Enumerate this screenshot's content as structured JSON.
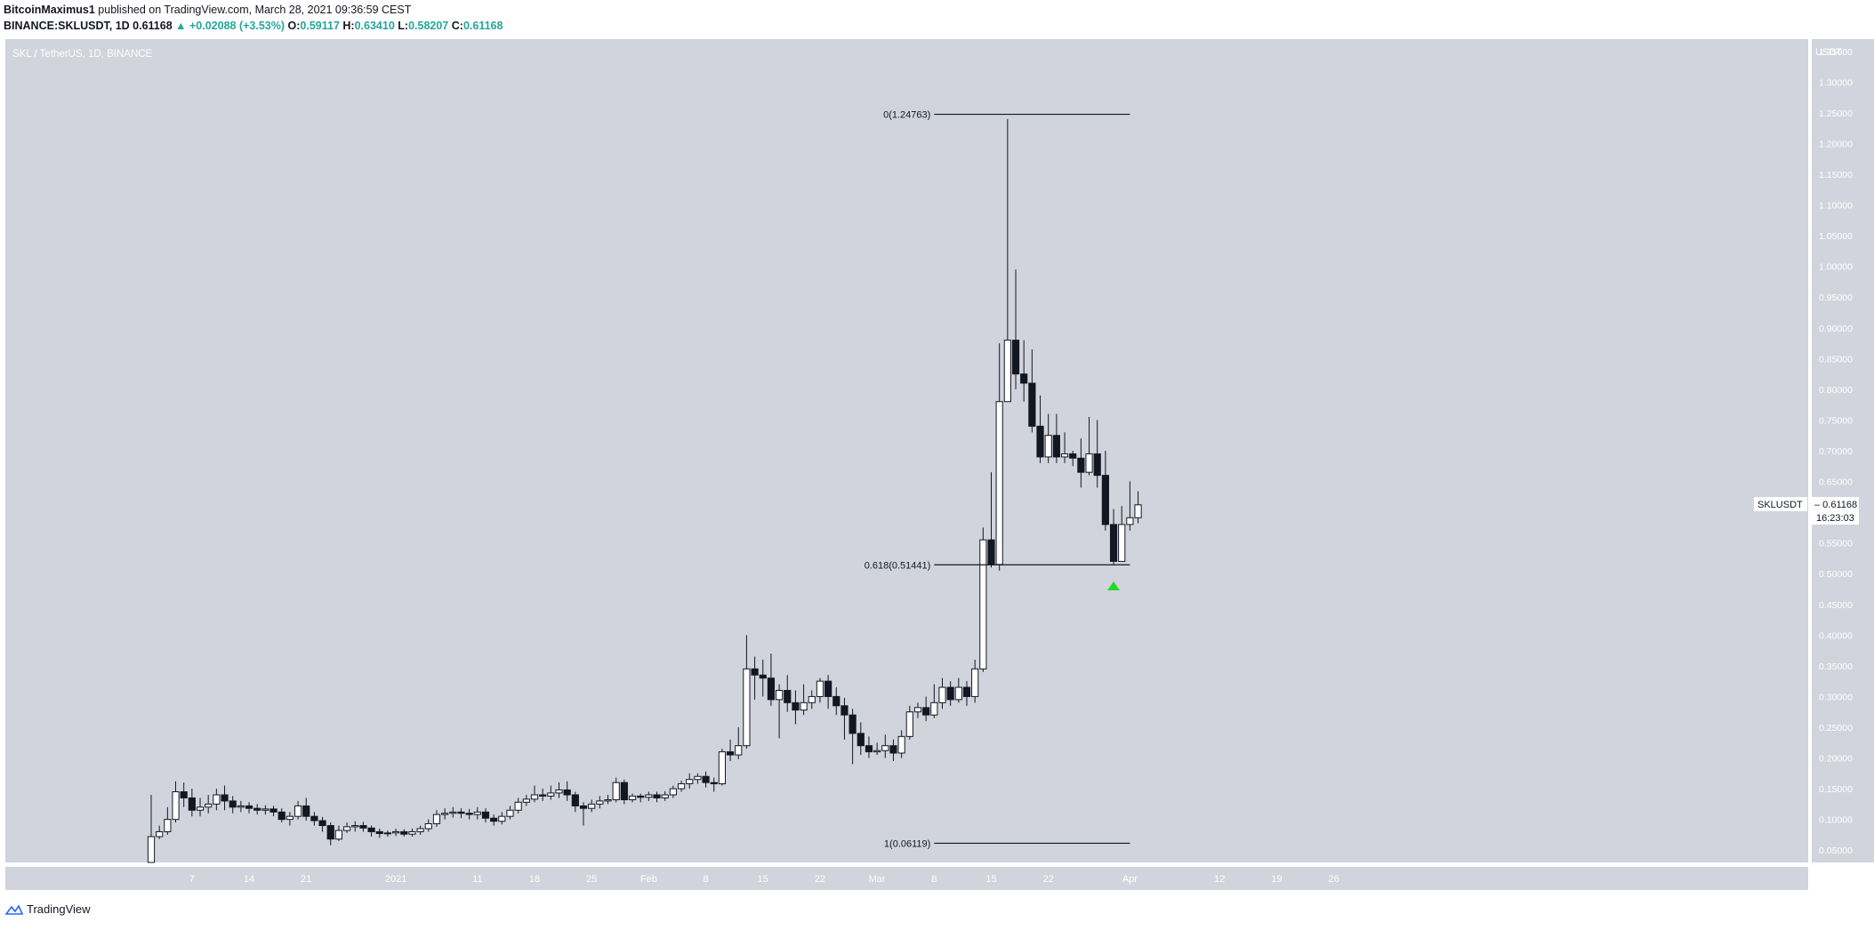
{
  "header": {
    "author": "BitcoinMaximus1",
    "published_text": "published on TradingView.com, March 28, 2021 09:36:59 CEST",
    "symbol_line": "BINANCE:SKLUSDT, 1D",
    "last": "0.61168",
    "change": "▲ +0.02088 (+3.53%)",
    "o_label": "O:",
    "o": "0.59117",
    "h_label": "H:",
    "h": "0.63410",
    "l_label": "L:",
    "l": "0.58207",
    "c_label": "C:",
    "c": "0.61168"
  },
  "footer": {
    "brand": "TradingView"
  },
  "chart_data": {
    "type": "candlestick",
    "pane_title": "SKL / TetherUS, 1D, BINANCE",
    "y_axis_unit": "USDT",
    "ylim": [
      0.03,
      1.37
    ],
    "y_ticks": [
      "0.05000",
      "0.10000",
      "0.15000",
      "0.20000",
      "0.25000",
      "0.30000",
      "0.35000",
      "0.40000",
      "0.45000",
      "0.50000",
      "0.55000",
      "0.60000",
      "0.65000",
      "0.70000",
      "0.75000",
      "0.80000",
      "0.85000",
      "0.90000",
      "0.95000",
      "1.00000",
      "1.05000",
      "1.10000",
      "1.15000",
      "1.20000",
      "1.25000",
      "1.30000",
      "1.35000"
    ],
    "x_ticks": [
      {
        "label": "7",
        "day": 5
      },
      {
        "label": "14",
        "day": 12
      },
      {
        "label": "21",
        "day": 19
      },
      {
        "label": "2021",
        "day": 30
      },
      {
        "label": "11",
        "day": 40
      },
      {
        "label": "18",
        "day": 47
      },
      {
        "label": "25",
        "day": 54
      },
      {
        "label": "Feb",
        "day": 61
      },
      {
        "label": "8",
        "day": 68
      },
      {
        "label": "15",
        "day": 75
      },
      {
        "label": "22",
        "day": 82
      },
      {
        "label": "Mar",
        "day": 89
      },
      {
        "label": "8",
        "day": 96
      },
      {
        "label": "15",
        "day": 103
      },
      {
        "label": "22",
        "day": 110
      },
      {
        "label": "Apr",
        "day": 120
      },
      {
        "label": "12",
        "day": 131
      },
      {
        "label": "19",
        "day": 138
      },
      {
        "label": "26",
        "day": 145
      }
    ],
    "candles": [
      [
        0.03,
        0.072,
        0.03,
        0.14
      ],
      [
        0.072,
        0.08,
        0.068,
        0.09
      ],
      [
        0.08,
        0.1,
        0.075,
        0.12
      ],
      [
        0.1,
        0.145,
        0.095,
        0.162
      ],
      [
        0.145,
        0.135,
        0.12,
        0.16
      ],
      [
        0.135,
        0.115,
        0.105,
        0.15
      ],
      [
        0.115,
        0.12,
        0.105,
        0.135
      ],
      [
        0.12,
        0.125,
        0.11,
        0.14
      ],
      [
        0.125,
        0.14,
        0.115,
        0.15
      ],
      [
        0.14,
        0.13,
        0.115,
        0.155
      ],
      [
        0.13,
        0.12,
        0.11,
        0.138
      ],
      [
        0.12,
        0.122,
        0.112,
        0.13
      ],
      [
        0.122,
        0.118,
        0.11,
        0.128
      ],
      [
        0.118,
        0.115,
        0.108,
        0.125
      ],
      [
        0.115,
        0.117,
        0.108,
        0.123
      ],
      [
        0.117,
        0.112,
        0.105,
        0.122
      ],
      [
        0.112,
        0.1,
        0.095,
        0.118
      ],
      [
        0.1,
        0.105,
        0.09,
        0.112
      ],
      [
        0.105,
        0.122,
        0.1,
        0.13
      ],
      [
        0.122,
        0.105,
        0.098,
        0.135
      ],
      [
        0.105,
        0.098,
        0.09,
        0.112
      ],
      [
        0.098,
        0.09,
        0.08,
        0.104
      ],
      [
        0.09,
        0.068,
        0.058,
        0.095
      ],
      [
        0.068,
        0.082,
        0.065,
        0.09
      ],
      [
        0.082,
        0.088,
        0.078,
        0.095
      ],
      [
        0.088,
        0.09,
        0.08,
        0.097
      ],
      [
        0.09,
        0.086,
        0.08,
        0.096
      ],
      [
        0.086,
        0.08,
        0.072,
        0.09
      ],
      [
        0.08,
        0.077,
        0.07,
        0.085
      ],
      [
        0.077,
        0.078,
        0.072,
        0.082
      ],
      [
        0.078,
        0.08,
        0.073,
        0.085
      ],
      [
        0.08,
        0.076,
        0.072,
        0.084
      ],
      [
        0.076,
        0.08,
        0.072,
        0.085
      ],
      [
        0.08,
        0.085,
        0.075,
        0.09
      ],
      [
        0.085,
        0.093,
        0.08,
        0.1
      ],
      [
        0.093,
        0.108,
        0.088,
        0.115
      ],
      [
        0.108,
        0.11,
        0.1,
        0.118
      ],
      [
        0.11,
        0.112,
        0.103,
        0.12
      ],
      [
        0.112,
        0.11,
        0.102,
        0.118
      ],
      [
        0.11,
        0.108,
        0.1,
        0.117
      ],
      [
        0.108,
        0.112,
        0.1,
        0.12
      ],
      [
        0.112,
        0.102,
        0.095,
        0.118
      ],
      [
        0.102,
        0.097,
        0.09,
        0.108
      ],
      [
        0.097,
        0.105,
        0.092,
        0.112
      ],
      [
        0.105,
        0.115,
        0.1,
        0.122
      ],
      [
        0.115,
        0.128,
        0.11,
        0.135
      ],
      [
        0.128,
        0.133,
        0.122,
        0.14
      ],
      [
        0.133,
        0.14,
        0.128,
        0.155
      ],
      [
        0.14,
        0.138,
        0.13,
        0.15
      ],
      [
        0.138,
        0.143,
        0.132,
        0.155
      ],
      [
        0.143,
        0.148,
        0.135,
        0.16
      ],
      [
        0.148,
        0.14,
        0.13,
        0.162
      ],
      [
        0.14,
        0.122,
        0.112,
        0.145
      ],
      [
        0.122,
        0.118,
        0.09,
        0.128
      ],
      [
        0.118,
        0.125,
        0.112,
        0.132
      ],
      [
        0.125,
        0.13,
        0.118,
        0.138
      ],
      [
        0.13,
        0.132,
        0.125,
        0.14
      ],
      [
        0.132,
        0.16,
        0.128,
        0.168
      ],
      [
        0.16,
        0.132,
        0.125,
        0.165
      ],
      [
        0.132,
        0.138,
        0.128,
        0.142
      ],
      [
        0.138,
        0.136,
        0.128,
        0.142
      ],
      [
        0.136,
        0.14,
        0.13,
        0.145
      ],
      [
        0.14,
        0.135,
        0.128,
        0.145
      ],
      [
        0.135,
        0.14,
        0.13,
        0.146
      ],
      [
        0.14,
        0.15,
        0.135,
        0.155
      ],
      [
        0.15,
        0.158,
        0.145,
        0.163
      ],
      [
        0.158,
        0.165,
        0.15,
        0.175
      ],
      [
        0.165,
        0.17,
        0.158,
        0.175
      ],
      [
        0.17,
        0.16,
        0.152,
        0.178
      ],
      [
        0.16,
        0.158,
        0.145,
        0.168
      ],
      [
        0.158,
        0.21,
        0.155,
        0.215
      ],
      [
        0.21,
        0.205,
        0.195,
        0.23
      ],
      [
        0.205,
        0.22,
        0.198,
        0.25
      ],
      [
        0.22,
        0.345,
        0.215,
        0.4
      ],
      [
        0.345,
        0.335,
        0.295,
        0.365
      ],
      [
        0.335,
        0.33,
        0.3,
        0.36
      ],
      [
        0.33,
        0.295,
        0.285,
        0.37
      ],
      [
        0.295,
        0.31,
        0.232,
        0.32
      ],
      [
        0.31,
        0.29,
        0.275,
        0.335
      ],
      [
        0.29,
        0.278,
        0.255,
        0.31
      ],
      [
        0.278,
        0.29,
        0.27,
        0.32
      ],
      [
        0.29,
        0.3,
        0.28,
        0.31
      ],
      [
        0.3,
        0.325,
        0.29,
        0.33
      ],
      [
        0.325,
        0.3,
        0.28,
        0.335
      ],
      [
        0.3,
        0.285,
        0.27,
        0.315
      ],
      [
        0.285,
        0.27,
        0.23,
        0.298
      ],
      [
        0.27,
        0.24,
        0.19,
        0.28
      ],
      [
        0.24,
        0.22,
        0.205,
        0.258
      ],
      [
        0.22,
        0.21,
        0.2,
        0.235
      ],
      [
        0.21,
        0.212,
        0.205,
        0.225
      ],
      [
        0.212,
        0.22,
        0.2,
        0.238
      ],
      [
        0.22,
        0.208,
        0.195,
        0.23
      ],
      [
        0.208,
        0.235,
        0.2,
        0.245
      ],
      [
        0.235,
        0.275,
        0.23,
        0.285
      ],
      [
        0.275,
        0.282,
        0.265,
        0.29
      ],
      [
        0.282,
        0.27,
        0.26,
        0.3
      ],
      [
        0.27,
        0.29,
        0.265,
        0.32
      ],
      [
        0.29,
        0.315,
        0.28,
        0.33
      ],
      [
        0.315,
        0.295,
        0.285,
        0.325
      ],
      [
        0.295,
        0.315,
        0.29,
        0.33
      ],
      [
        0.315,
        0.3,
        0.285,
        0.325
      ],
      [
        0.3,
        0.345,
        0.29,
        0.36
      ],
      [
        0.345,
        0.555,
        0.34,
        0.575
      ],
      [
        0.555,
        0.515,
        0.51,
        0.665
      ],
      [
        0.515,
        0.78,
        0.505,
        0.875
      ],
      [
        0.78,
        0.88,
        0.78,
        1.24
      ],
      [
        0.88,
        0.825,
        0.8,
        0.995
      ],
      [
        0.825,
        0.81,
        0.78,
        0.88
      ],
      [
        0.81,
        0.74,
        0.73,
        0.865
      ],
      [
        0.74,
        0.69,
        0.68,
        0.79
      ],
      [
        0.69,
        0.725,
        0.68,
        0.76
      ],
      [
        0.725,
        0.69,
        0.68,
        0.76
      ],
      [
        0.69,
        0.695,
        0.68,
        0.73
      ],
      [
        0.695,
        0.688,
        0.675,
        0.7
      ],
      [
        0.688,
        0.665,
        0.64,
        0.72
      ],
      [
        0.665,
        0.695,
        0.66,
        0.755
      ],
      [
        0.695,
        0.66,
        0.64,
        0.75
      ],
      [
        0.66,
        0.58,
        0.57,
        0.7
      ],
      [
        0.58,
        0.52,
        0.515,
        0.605
      ],
      [
        0.52,
        0.58,
        0.52,
        0.61
      ],
      [
        0.58,
        0.591,
        0.57,
        0.65
      ],
      [
        0.591,
        0.612,
        0.582,
        0.634
      ]
    ],
    "fib_levels": [
      {
        "label": "0(1.24763)",
        "value": 1.24763
      },
      {
        "label": "0.618(0.51441)",
        "value": 0.51441
      },
      {
        "label": "1(0.06119)",
        "value": 0.06119
      }
    ],
    "fib_start_day": 96,
    "fib_end_day": 120,
    "signal_marker": {
      "type": "up-triangle",
      "day": 118,
      "color": "#26d62a"
    },
    "price_tag": {
      "symbol": "SKLUSDT",
      "value": "0.61168",
      "value_num": 0.61168,
      "countdown": "16:23:03"
    },
    "colors": {
      "bull_body": "#ffffff",
      "bear_body": "#131722",
      "outline": "#131722",
      "pane_bg": "#d1d4dc"
    }
  }
}
